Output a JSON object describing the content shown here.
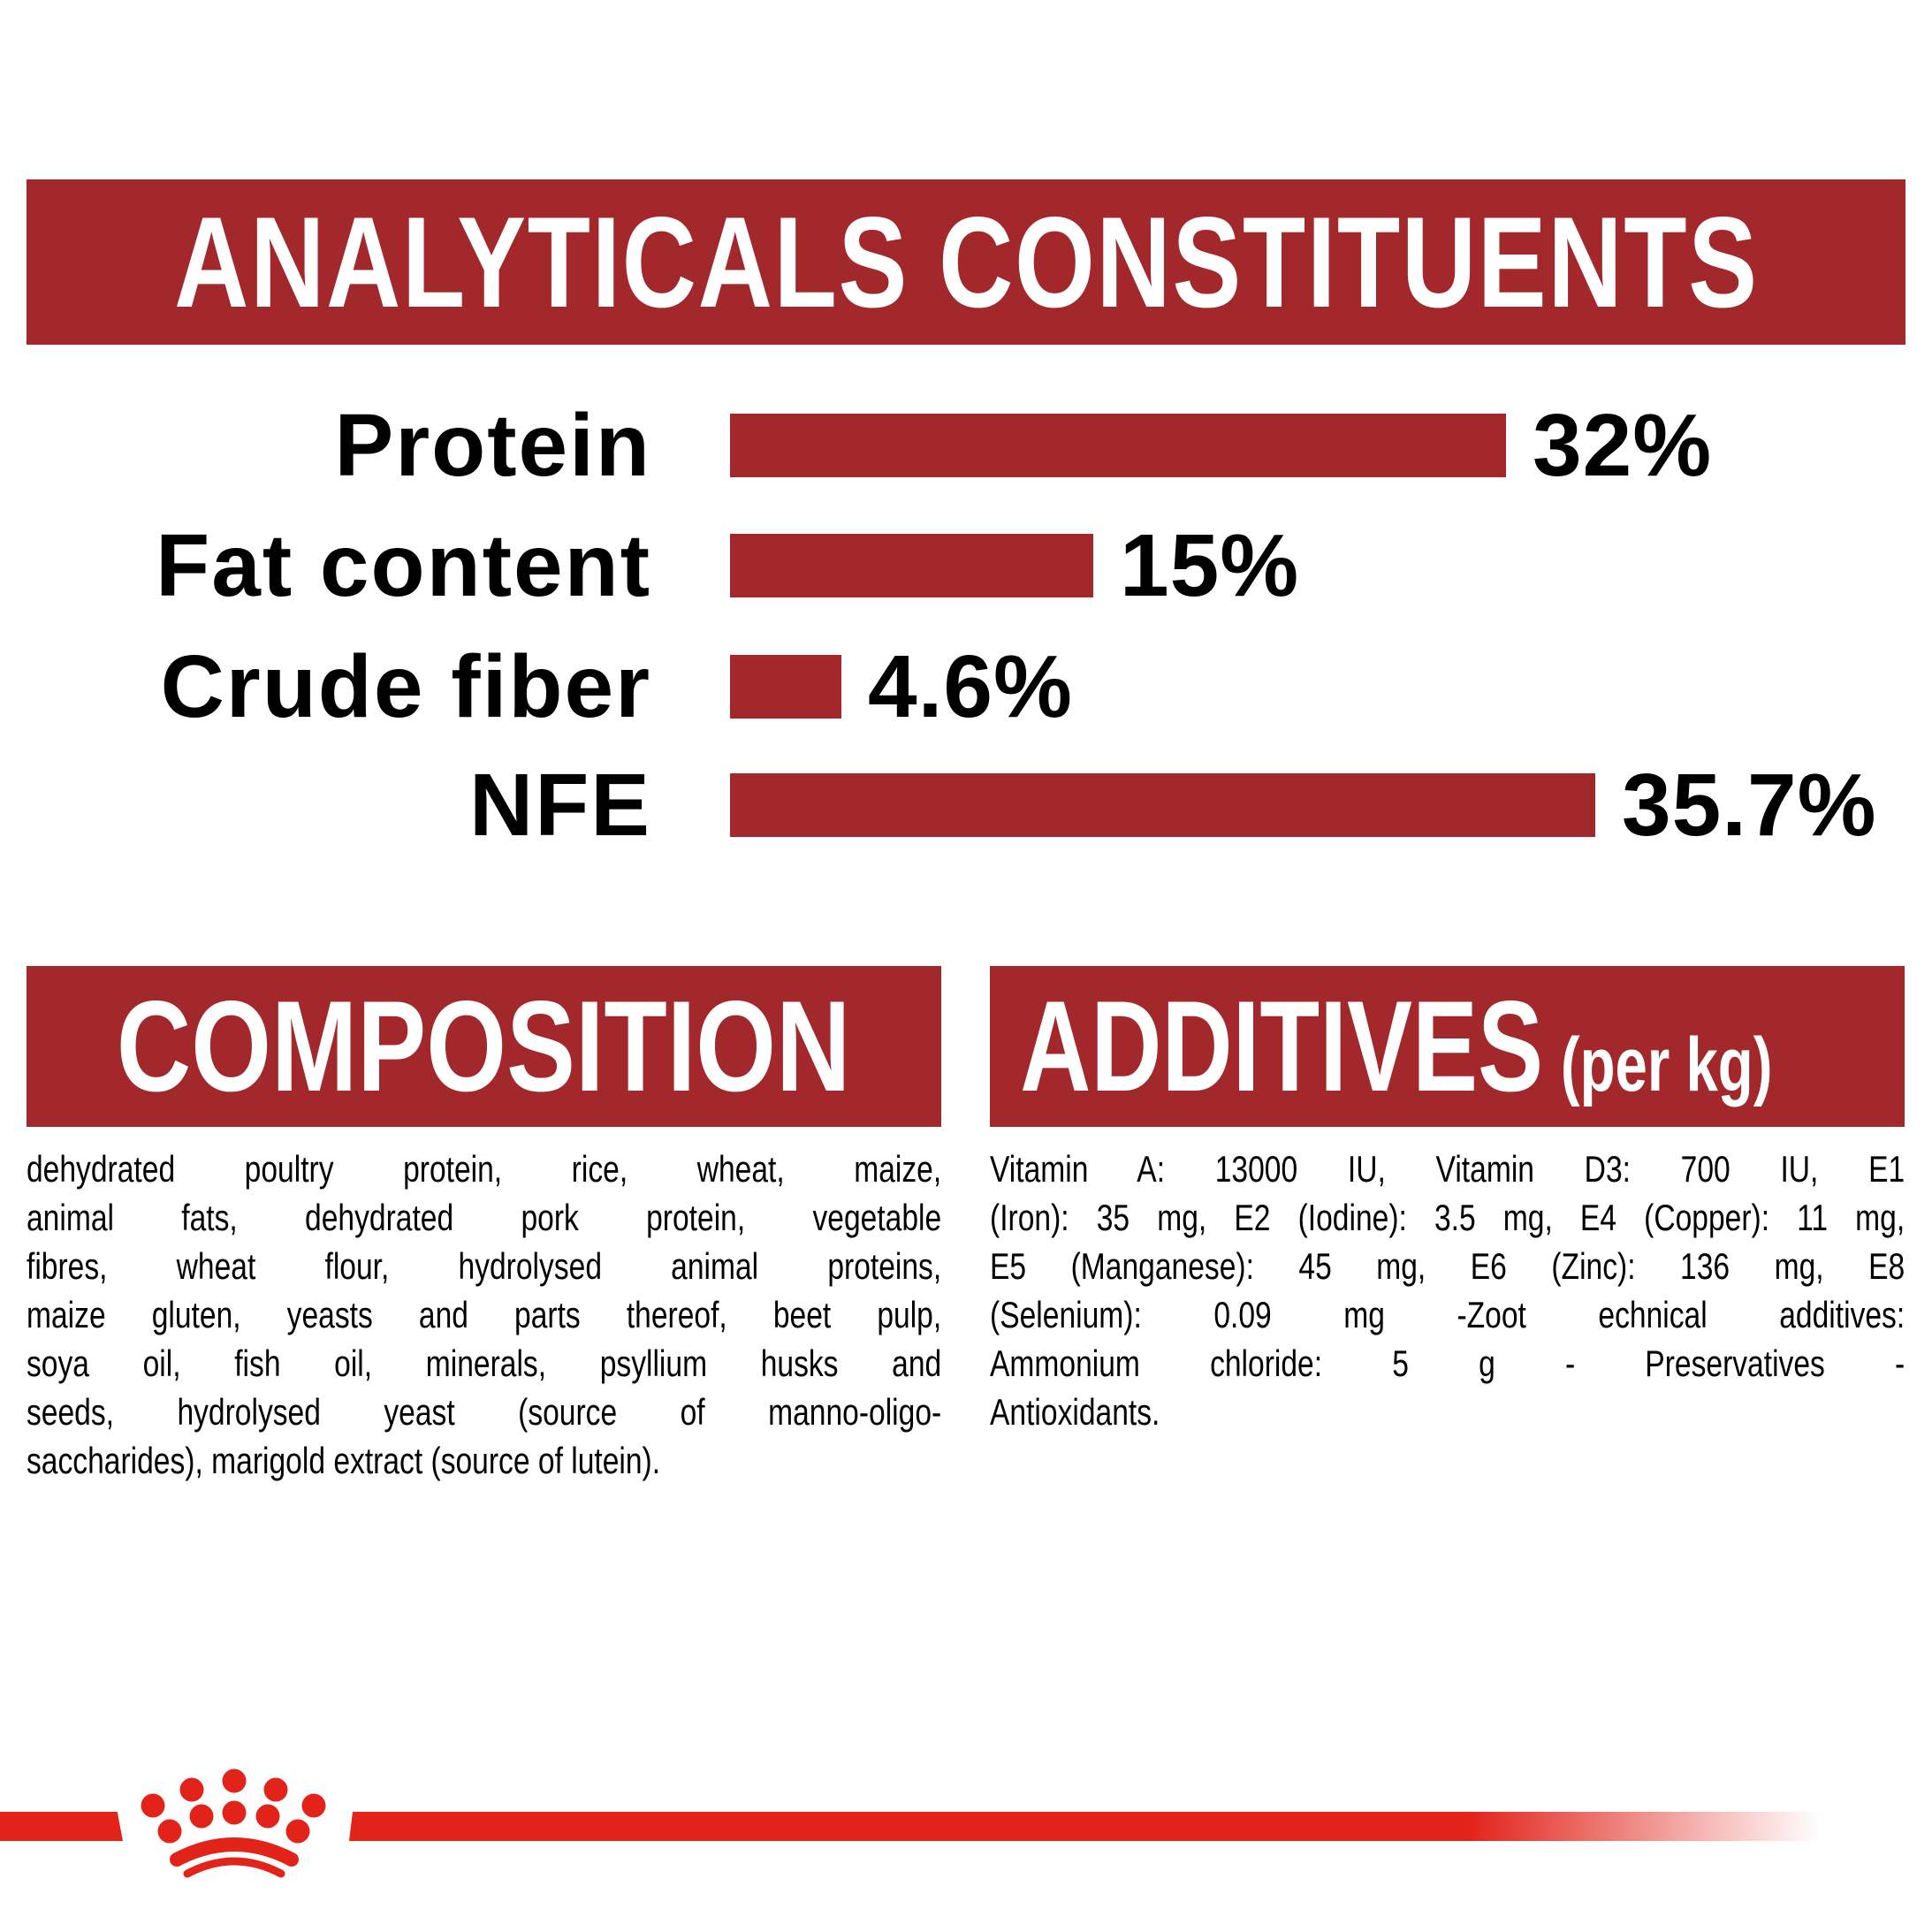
{
  "colors": {
    "banner_red": "#a2282c",
    "bar_red": "#a2282c",
    "brand_red": "#e2231a",
    "text": "#000000",
    "banner_text": "#ffffff"
  },
  "header": {
    "title": "ANALYTICALS CONSTITUENTS"
  },
  "chart_data": {
    "type": "bar",
    "orientation": "horizontal",
    "categories": [
      "Protein",
      "Fat content",
      "Crude fiber",
      "NFE"
    ],
    "values": [
      32,
      15,
      4.6,
      35.7
    ],
    "value_labels": [
      "32%",
      "15%",
      "4.6%",
      "35.7%"
    ],
    "unit": "%",
    "xlim": [
      0,
      36
    ],
    "bar_color": "#a2282c",
    "grid": false,
    "legend": false
  },
  "composition": {
    "title": "COMPOSITION",
    "lines": [
      "dehydrated poultry protein, rice, wheat, maize,",
      "animal fats, dehydrated pork protein, vegetable",
      "fibres, wheat flour, hydrolysed animal proteins,",
      "maize gluten, yeasts and parts thereof, beet pulp,",
      "soya oil, fish oil, minerals, psyllium husks and",
      "seeds, hydrolysed yeast (source of manno-oligo-",
      "saccharides), marigold extract (source of lutein)."
    ]
  },
  "additives": {
    "title": "ADDITIVES",
    "title_suffix": "(per kg)",
    "lines": [
      "Vitamin A: 13000 IU, Vitamin D3: 700 IU, E1",
      "(Iron): 35 mg, E2 (Iodine): 3.5 mg, E4 (Copper): 11 mg,",
      "E5 (Manganese): 45 mg, E6 (Zinc): 136 mg, E8",
      "(Selenium): 0.09 mg -Zoot echnical additives:",
      "Ammonium chloride: 5 g - Preservatives -",
      "Antioxidants."
    ]
  },
  "footer": {
    "logo": "royal-canin-crown"
  }
}
